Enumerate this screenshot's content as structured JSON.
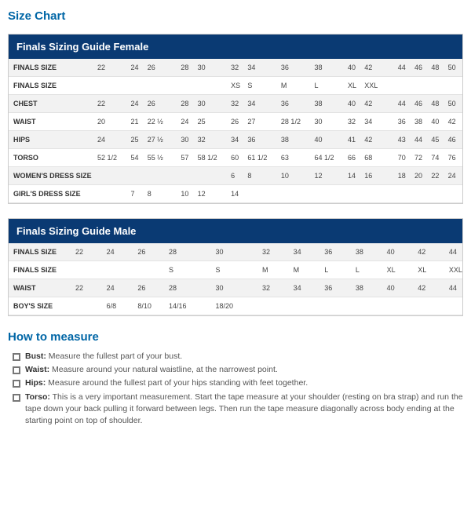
{
  "page_title": "Size Chart",
  "female": {
    "title": "Finals Sizing Guide Female",
    "label_col_width": 110,
    "rows": [
      {
        "label": "FINALS SIZE",
        "alt": true,
        "cells": [
          "22",
          "",
          "24",
          "26",
          "",
          "28",
          "30",
          "",
          "32",
          "34",
          "",
          "36",
          "",
          "38",
          "",
          "40",
          "42",
          "",
          "44",
          "46",
          "48",
          "50"
        ]
      },
      {
        "label": "FINALS SIZE",
        "alt": false,
        "cells": [
          "",
          "",
          "",
          "",
          "",
          "",
          "",
          "",
          "XS",
          "S",
          "",
          "M",
          "",
          "L",
          "",
          "XL",
          "XXL",
          "",
          "",
          "",
          "",
          ""
        ]
      },
      {
        "label": "CHEST",
        "alt": true,
        "cells": [
          "22",
          "",
          "24",
          "26",
          "",
          "28",
          "30",
          "",
          "32",
          "34",
          "",
          "36",
          "",
          "38",
          "",
          "40",
          "42",
          "",
          "44",
          "46",
          "48",
          "50"
        ]
      },
      {
        "label": "WAIST",
        "alt": false,
        "cells": [
          "20",
          "",
          "21",
          "22 ½",
          "",
          "24",
          "25",
          "",
          "26",
          "27",
          "",
          "28 1/2",
          "",
          "30",
          "",
          "32",
          "34",
          "",
          "36",
          "38",
          "40",
          "42"
        ]
      },
      {
        "label": "HIPS",
        "alt": true,
        "cells": [
          "24",
          "",
          "25",
          "27 ½",
          "",
          "30",
          "32",
          "",
          "34",
          "36",
          "",
          "38",
          "",
          "40",
          "",
          "41",
          "42",
          "",
          "43",
          "44",
          "45",
          "46"
        ]
      },
      {
        "label": "TORSO",
        "alt": false,
        "cells": [
          "52 1/2",
          "",
          "54",
          "55 ½",
          "",
          "57",
          "58 1/2",
          "",
          "60",
          "61 1/2",
          "",
          "63",
          "",
          "64 1/2",
          "",
          "66",
          "68",
          "",
          "70",
          "72",
          "74",
          "76"
        ]
      },
      {
        "label": "WOMEN'S DRESS SIZE",
        "alt": true,
        "cells": [
          "",
          "",
          "",
          "",
          "",
          "",
          "",
          "",
          "6",
          "8",
          "",
          "10",
          "",
          "12",
          "",
          "14",
          "16",
          "",
          "18",
          "20",
          "22",
          "24"
        ]
      },
      {
        "label": "GIRL'S DRESS SIZE",
        "alt": false,
        "cells": [
          "",
          "",
          "7",
          "8",
          "",
          "10",
          "12",
          "",
          "14",
          "",
          "",
          "",
          "",
          "",
          "",
          "",
          "",
          "",
          "",
          "",
          "",
          ""
        ]
      }
    ]
  },
  "male": {
    "title": "Finals Sizing Guide Male",
    "label_col_width": 82,
    "rows": [
      {
        "label": "FINALS SIZE",
        "alt": true,
        "cells": [
          "22",
          "",
          "24",
          "",
          "26",
          "",
          "28",
          "",
          "",
          "30",
          "",
          "",
          "32",
          "",
          "34",
          "",
          "36",
          "",
          "38",
          "",
          "40",
          "",
          "42",
          "",
          "44"
        ]
      },
      {
        "label": "FINALS SIZE",
        "alt": false,
        "cells": [
          "",
          "",
          "",
          "",
          "",
          "",
          "S",
          "",
          "",
          "S",
          "",
          "",
          "M",
          "",
          "M",
          "",
          "L",
          "",
          "L",
          "",
          "XL",
          "",
          "XL",
          "",
          "XXL"
        ]
      },
      {
        "label": "WAIST",
        "alt": true,
        "cells": [
          "22",
          "",
          "24",
          "",
          "26",
          "",
          "28",
          "",
          "",
          "30",
          "",
          "",
          "32",
          "",
          "34",
          "",
          "36",
          "",
          "38",
          "",
          "40",
          "",
          "42",
          "",
          "44"
        ]
      },
      {
        "label": "BOY'S SIZE",
        "alt": false,
        "cells": [
          "",
          "",
          "6/8",
          "",
          "8/10",
          "",
          "14/16",
          "",
          "",
          "18/20",
          "",
          "",
          "",
          "",
          "",
          "",
          "",
          "",
          "",
          "",
          "",
          "",
          "",
          "",
          ""
        ]
      }
    ]
  },
  "howto": {
    "title": "How to measure",
    "items": [
      {
        "b": "Bust:",
        "t": " Measure the fullest part of your bust."
      },
      {
        "b": "Waist:",
        "t": " Measure around your natural waistline, at the narrowest point."
      },
      {
        "b": "Hips:",
        "t": " Measure around the fullest part of your hips standing with feet together."
      },
      {
        "b": "Torso:",
        "t": " This is a very important measurement. Start the tape measure at your shoulder (resting on bra strap) and run the tape down your back pulling it forward between legs. Then run the tape measure diagonally across body ending at the starting point on top of shoulder."
      }
    ]
  },
  "colors": {
    "header_bg": "#0a3a73",
    "link_blue": "#0066a6",
    "alt_row": "#f2f2f2",
    "border": "#cccccc"
  }
}
